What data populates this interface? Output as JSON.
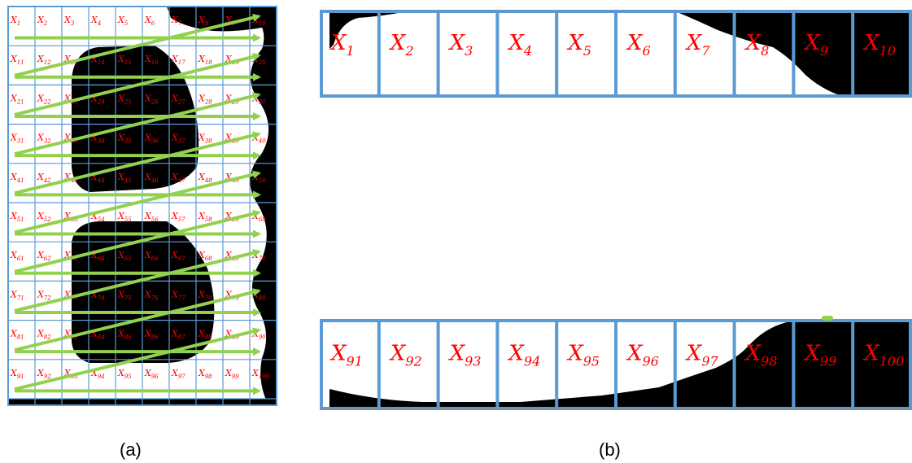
{
  "figure": {
    "panel_a": {
      "caption": "(a)",
      "grid": {
        "rows": 10,
        "cols": 10,
        "label_prefix": "X"
      },
      "scan_order": "row-major, left-to-right then return to next row",
      "colors": {
        "grid_line": "#5b9bd5",
        "label": "#ff0000",
        "arrow": "#92d050",
        "ink": "#000000",
        "paper": "#ffffff"
      },
      "icon": "zigzag-scan-arrow-icon"
    },
    "panel_b": {
      "caption": "(b)",
      "top_strip": {
        "labels": [
          "1",
          "2",
          "3",
          "4",
          "5",
          "6",
          "7",
          "8",
          "9",
          "10"
        ]
      },
      "bottom_strip": {
        "labels": [
          "91",
          "92",
          "93",
          "94",
          "95",
          "96",
          "97",
          "98",
          "99",
          "100"
        ]
      },
      "colors": {
        "grid_line": "#5b9bd5",
        "label": "#ff0000",
        "ink": "#000000",
        "paper": "#ffffff"
      }
    }
  }
}
